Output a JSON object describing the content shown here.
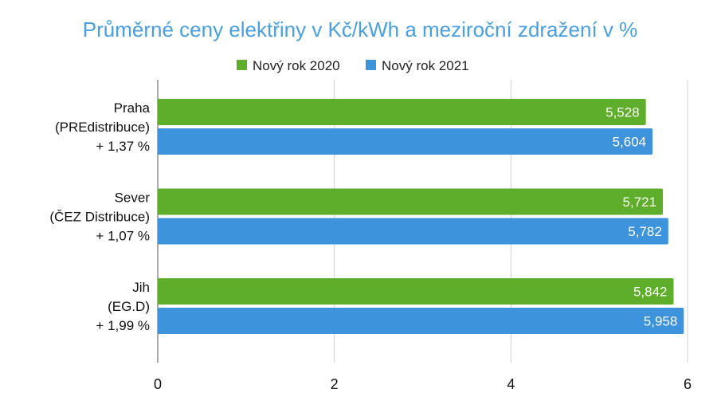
{
  "chart_data": {
    "type": "bar",
    "orientation": "horizontal",
    "title": "Průměrné ceny elektřiny v Kč/kWh a meziroční zdražení v %",
    "categories": [
      [
        "Praha",
        "(PREdistribuce)",
        "+ 1,37 %"
      ],
      [
        "Sever",
        "(ČEZ Distribuce)",
        "+ 1,07 %"
      ],
      [
        "Jih",
        "(EG.D)",
        "+ 1,99 %"
      ]
    ],
    "series": [
      {
        "name": "Nový rok 2020",
        "color": "#5fae2b",
        "values": [
          5.528,
          5.721,
          5.842
        ],
        "labels": [
          "5,528",
          "5,721",
          "5,842"
        ]
      },
      {
        "name": "Nový rok 2021",
        "color": "#3d93dc",
        "values": [
          5.604,
          5.782,
          5.958
        ],
        "labels": [
          "5,604",
          "5,782",
          "5,958"
        ]
      }
    ],
    "xlim": [
      0,
      6
    ],
    "xticks": [
      0,
      2,
      4,
      6
    ],
    "xtick_labels": [
      "0",
      "2",
      "4",
      "6"
    ],
    "grid": true,
    "legend": "top-center"
  }
}
